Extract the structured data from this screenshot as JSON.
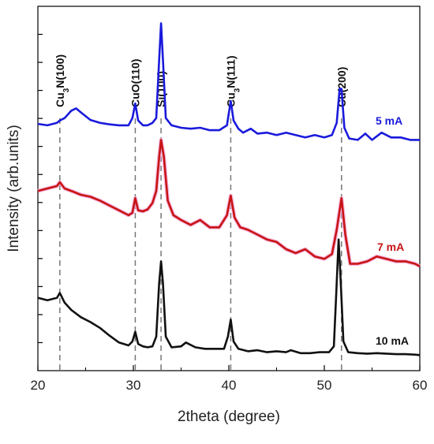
{
  "chart_data": {
    "type": "line",
    "title": "",
    "xlabel": "2theta (degree)",
    "ylabel": "Intensity (arb.units)",
    "xlim": [
      20,
      60
    ],
    "x_ticks": [
      20,
      30,
      40,
      50,
      60
    ],
    "y_ticks_labeled": false,
    "grid": false,
    "reference_lines": [
      {
        "x": 22.3,
        "label_pre": "Cu",
        "label_sub": "3",
        "label_post": "N(100)"
      },
      {
        "x": 30.2,
        "label_pre": "CuO(110)",
        "label_sub": "",
        "label_post": ""
      },
      {
        "x": 32.9,
        "label_pre": "Si(100)",
        "label_sub": "",
        "label_post": ""
      },
      {
        "x": 40.2,
        "label_pre": "Cu",
        "label_sub": "3",
        "label_post": "N(111)"
      },
      {
        "x": 51.8,
        "label_pre": "Cu(200)",
        "label_sub": "",
        "label_post": ""
      }
    ],
    "series": [
      {
        "name": "5 mA",
        "color": "#1a1adc",
        "points": [
          [
            20,
            6.48
          ],
          [
            21,
            6.45
          ],
          [
            22,
            6.5
          ],
          [
            22.3,
            6.55
          ],
          [
            22.8,
            6.6
          ],
          [
            23.5,
            6.75
          ],
          [
            24,
            6.8
          ],
          [
            24.6,
            6.7
          ],
          [
            25.5,
            6.56
          ],
          [
            26.5,
            6.5
          ],
          [
            27.5,
            6.47
          ],
          [
            28.5,
            6.45
          ],
          [
            29.5,
            6.45
          ],
          [
            29.9,
            6.6
          ],
          [
            30.2,
            6.9
          ],
          [
            30.5,
            6.55
          ],
          [
            31,
            6.45
          ],
          [
            31.5,
            6.45
          ],
          [
            32,
            6.5
          ],
          [
            32.4,
            6.6
          ],
          [
            32.7,
            7.8
          ],
          [
            32.9,
            8.55
          ],
          [
            33.1,
            7.8
          ],
          [
            33.4,
            6.6
          ],
          [
            34,
            6.45
          ],
          [
            35,
            6.4
          ],
          [
            36,
            6.38
          ],
          [
            37,
            6.4
          ],
          [
            38,
            6.35
          ],
          [
            39,
            6.35
          ],
          [
            39.8,
            6.45
          ],
          [
            40.2,
            6.95
          ],
          [
            40.5,
            6.55
          ],
          [
            41,
            6.38
          ],
          [
            41.5,
            6.3
          ],
          [
            42.3,
            6.38
          ],
          [
            43,
            6.28
          ],
          [
            44,
            6.3
          ],
          [
            45,
            6.25
          ],
          [
            46,
            6.3
          ],
          [
            47,
            6.25
          ],
          [
            48,
            6.2
          ],
          [
            49,
            6.25
          ],
          [
            50,
            6.2
          ],
          [
            50.8,
            6.25
          ],
          [
            51.3,
            6.5
          ],
          [
            51.6,
            7.2
          ],
          [
            51.8,
            7.2
          ],
          [
            52.1,
            6.4
          ],
          [
            52.6,
            6.18
          ],
          [
            53.5,
            6.15
          ],
          [
            54.3,
            6.28
          ],
          [
            55,
            6.15
          ],
          [
            56,
            6.3
          ],
          [
            57,
            6.2
          ],
          [
            58,
            6.2
          ],
          [
            59,
            6.15
          ],
          [
            60,
            6.15
          ]
        ]
      },
      {
        "name": "7 mA",
        "color": "#c81414",
        "points": [
          [
            20,
            5.1
          ],
          [
            21,
            5.15
          ],
          [
            22,
            5.2
          ],
          [
            22.3,
            5.28
          ],
          [
            22.8,
            5.15
          ],
          [
            23.5,
            5.1
          ],
          [
            24.5,
            5.02
          ],
          [
            25.5,
            4.98
          ],
          [
            26.5,
            4.9
          ],
          [
            27.5,
            4.8
          ],
          [
            28.5,
            4.7
          ],
          [
            29.5,
            4.6
          ],
          [
            29.9,
            4.65
          ],
          [
            30.2,
            4.95
          ],
          [
            30.5,
            4.7
          ],
          [
            31,
            4.68
          ],
          [
            31.5,
            4.72
          ],
          [
            32,
            4.85
          ],
          [
            32.4,
            5.1
          ],
          [
            32.7,
            5.8
          ],
          [
            32.9,
            6.15
          ],
          [
            33.2,
            5.8
          ],
          [
            33.6,
            4.9
          ],
          [
            34.2,
            4.6
          ],
          [
            35,
            4.5
          ],
          [
            36,
            4.4
          ],
          [
            37,
            4.5
          ],
          [
            38,
            4.35
          ],
          [
            39,
            4.35
          ],
          [
            39.8,
            4.6
          ],
          [
            40.2,
            5.0
          ],
          [
            40.6,
            4.55
          ],
          [
            41.2,
            4.35
          ],
          [
            42,
            4.3
          ],
          [
            43,
            4.2
          ],
          [
            44,
            4.1
          ],
          [
            45,
            4.05
          ],
          [
            46,
            3.9
          ],
          [
            47,
            3.82
          ],
          [
            48,
            3.9
          ],
          [
            49,
            3.75
          ],
          [
            50,
            3.7
          ],
          [
            50.8,
            3.8
          ],
          [
            51.3,
            4.3
          ],
          [
            51.8,
            4.95
          ],
          [
            52.2,
            4.2
          ],
          [
            52.7,
            3.6
          ],
          [
            53.5,
            3.6
          ],
          [
            54.5,
            3.65
          ],
          [
            55.5,
            3.75
          ],
          [
            56.5,
            3.7
          ],
          [
            57.5,
            3.65
          ],
          [
            58.5,
            3.65
          ],
          [
            59.5,
            3.6
          ],
          [
            60,
            3.55
          ]
        ]
      },
      {
        "name": "10 mA",
        "color": "#111111",
        "points": [
          [
            20,
            2.9
          ],
          [
            21,
            2.85
          ],
          [
            22,
            2.9
          ],
          [
            22.3,
            3.0
          ],
          [
            22.8,
            2.8
          ],
          [
            23.5,
            2.65
          ],
          [
            24.5,
            2.5
          ],
          [
            25.5,
            2.4
          ],
          [
            26.5,
            2.28
          ],
          [
            27.5,
            2.12
          ],
          [
            28.5,
            1.98
          ],
          [
            29.5,
            1.92
          ],
          [
            29.9,
            2.0
          ],
          [
            30.2,
            2.2
          ],
          [
            30.5,
            1.95
          ],
          [
            31,
            1.9
          ],
          [
            31.5,
            1.88
          ],
          [
            32,
            1.9
          ],
          [
            32.4,
            2.1
          ],
          [
            32.7,
            3.2
          ],
          [
            32.9,
            3.65
          ],
          [
            33.1,
            3.2
          ],
          [
            33.4,
            2.1
          ],
          [
            34,
            1.88
          ],
          [
            35,
            1.9
          ],
          [
            35.5,
            1.98
          ],
          [
            36.5,
            1.88
          ],
          [
            37.5,
            1.85
          ],
          [
            38.5,
            1.85
          ],
          [
            39.5,
            1.85
          ],
          [
            39.9,
            2.1
          ],
          [
            40.2,
            2.45
          ],
          [
            40.5,
            2.0
          ],
          [
            41,
            1.85
          ],
          [
            42,
            1.8
          ],
          [
            43,
            1.82
          ],
          [
            44,
            1.78
          ],
          [
            45,
            1.8
          ],
          [
            46,
            1.78
          ],
          [
            46.5,
            1.82
          ],
          [
            47.5,
            1.76
          ],
          [
            48.5,
            1.76
          ],
          [
            49.5,
            1.78
          ],
          [
            50.5,
            1.78
          ],
          [
            51,
            1.9
          ],
          [
            51.3,
            3.2
          ],
          [
            51.5,
            4.1
          ],
          [
            51.7,
            3.3
          ],
          [
            52,
            2.0
          ],
          [
            52.5,
            1.78
          ],
          [
            53.5,
            1.76
          ],
          [
            54.5,
            1.75
          ],
          [
            55.5,
            1.76
          ],
          [
            56.5,
            1.75
          ],
          [
            57.5,
            1.74
          ],
          [
            58.5,
            1.74
          ],
          [
            59.5,
            1.73
          ],
          [
            60,
            1.72
          ]
        ]
      }
    ]
  }
}
